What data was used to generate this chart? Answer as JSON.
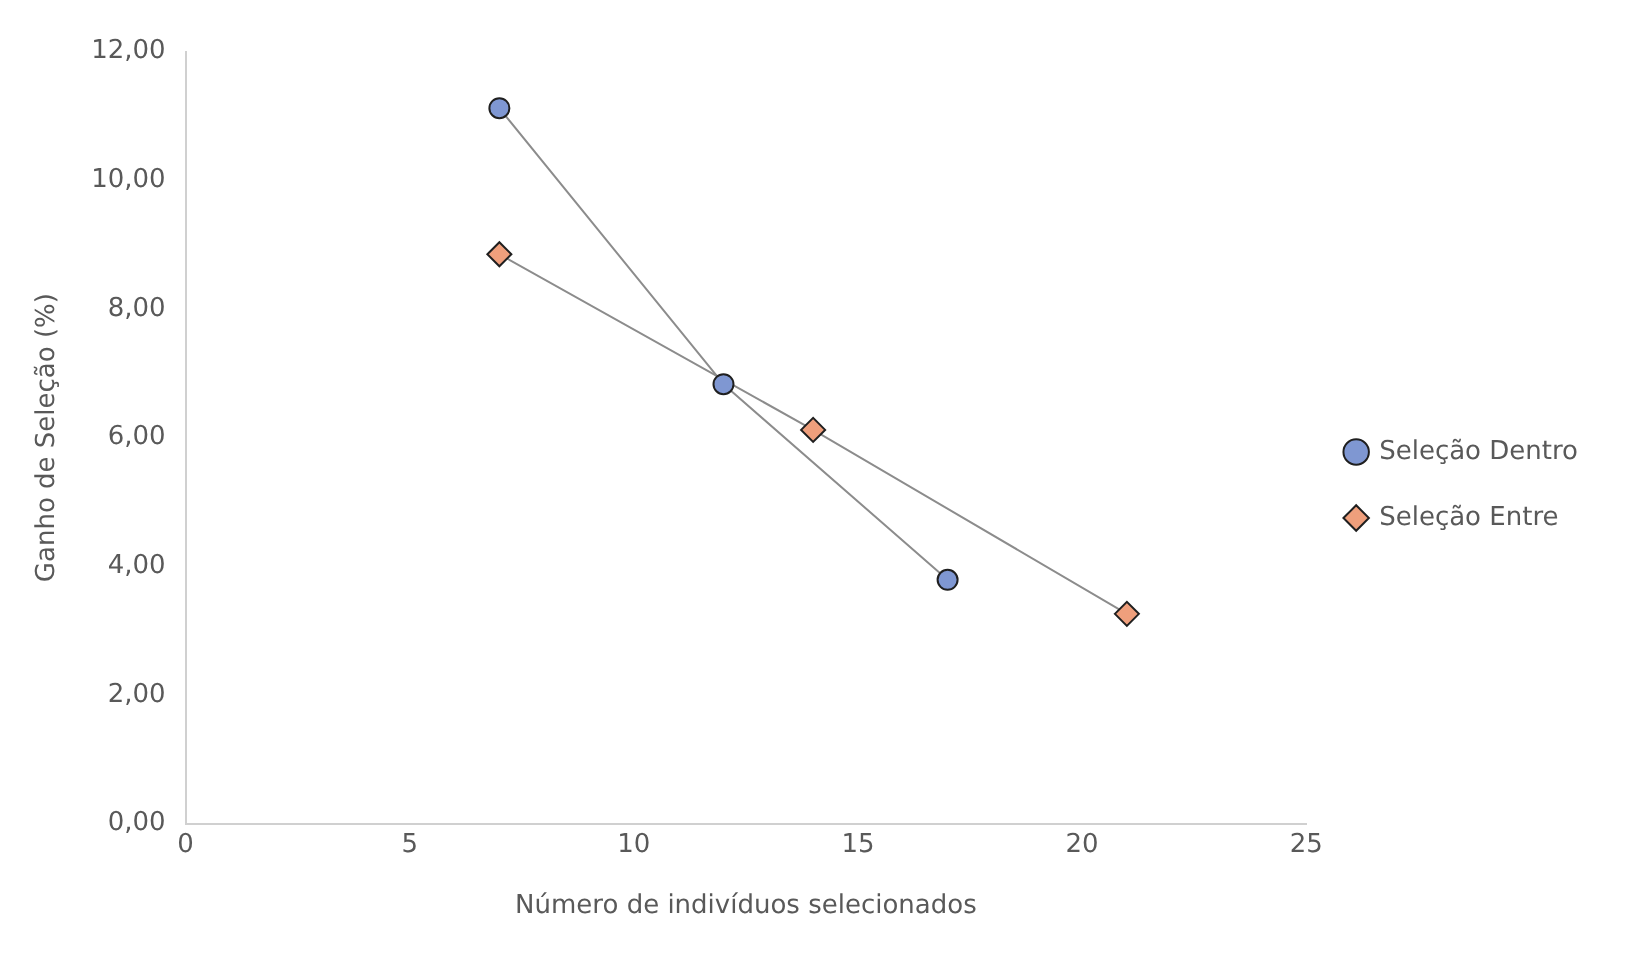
{
  "chart_data": {
    "type": "line",
    "xlabel": "Número de indivíduos selecionados",
    "ylabel": "Ganho de Seleção (%)",
    "xlim": [
      0,
      25
    ],
    "xticks": [
      0,
      5,
      10,
      15,
      20,
      25
    ],
    "ylim": [
      0,
      12
    ],
    "yticks": [
      {
        "value": 0,
        "label": "0,00"
      },
      {
        "value": 2,
        "label": "2,00"
      },
      {
        "value": 4,
        "label": "4,00"
      },
      {
        "value": 6,
        "label": "6,00"
      },
      {
        "value": 8,
        "label": "8,00"
      },
      {
        "value": 10,
        "label": "10,00"
      },
      {
        "value": 12,
        "label": "12,00"
      }
    ],
    "grid": false,
    "legend": "right",
    "line_style": "solid",
    "series": [
      {
        "name": "Seleção Dentro",
        "color": "#7f97d2",
        "marker": "circle",
        "x": [
          7,
          12,
          17
        ],
        "values": [
          11.12,
          6.83,
          3.79
        ]
      },
      {
        "name": "Seleção Entre",
        "color": "#ef9f7c",
        "marker": "diamond",
        "x": [
          7,
          14,
          21
        ],
        "values": [
          8.85,
          6.12,
          3.26
        ]
      }
    ]
  }
}
